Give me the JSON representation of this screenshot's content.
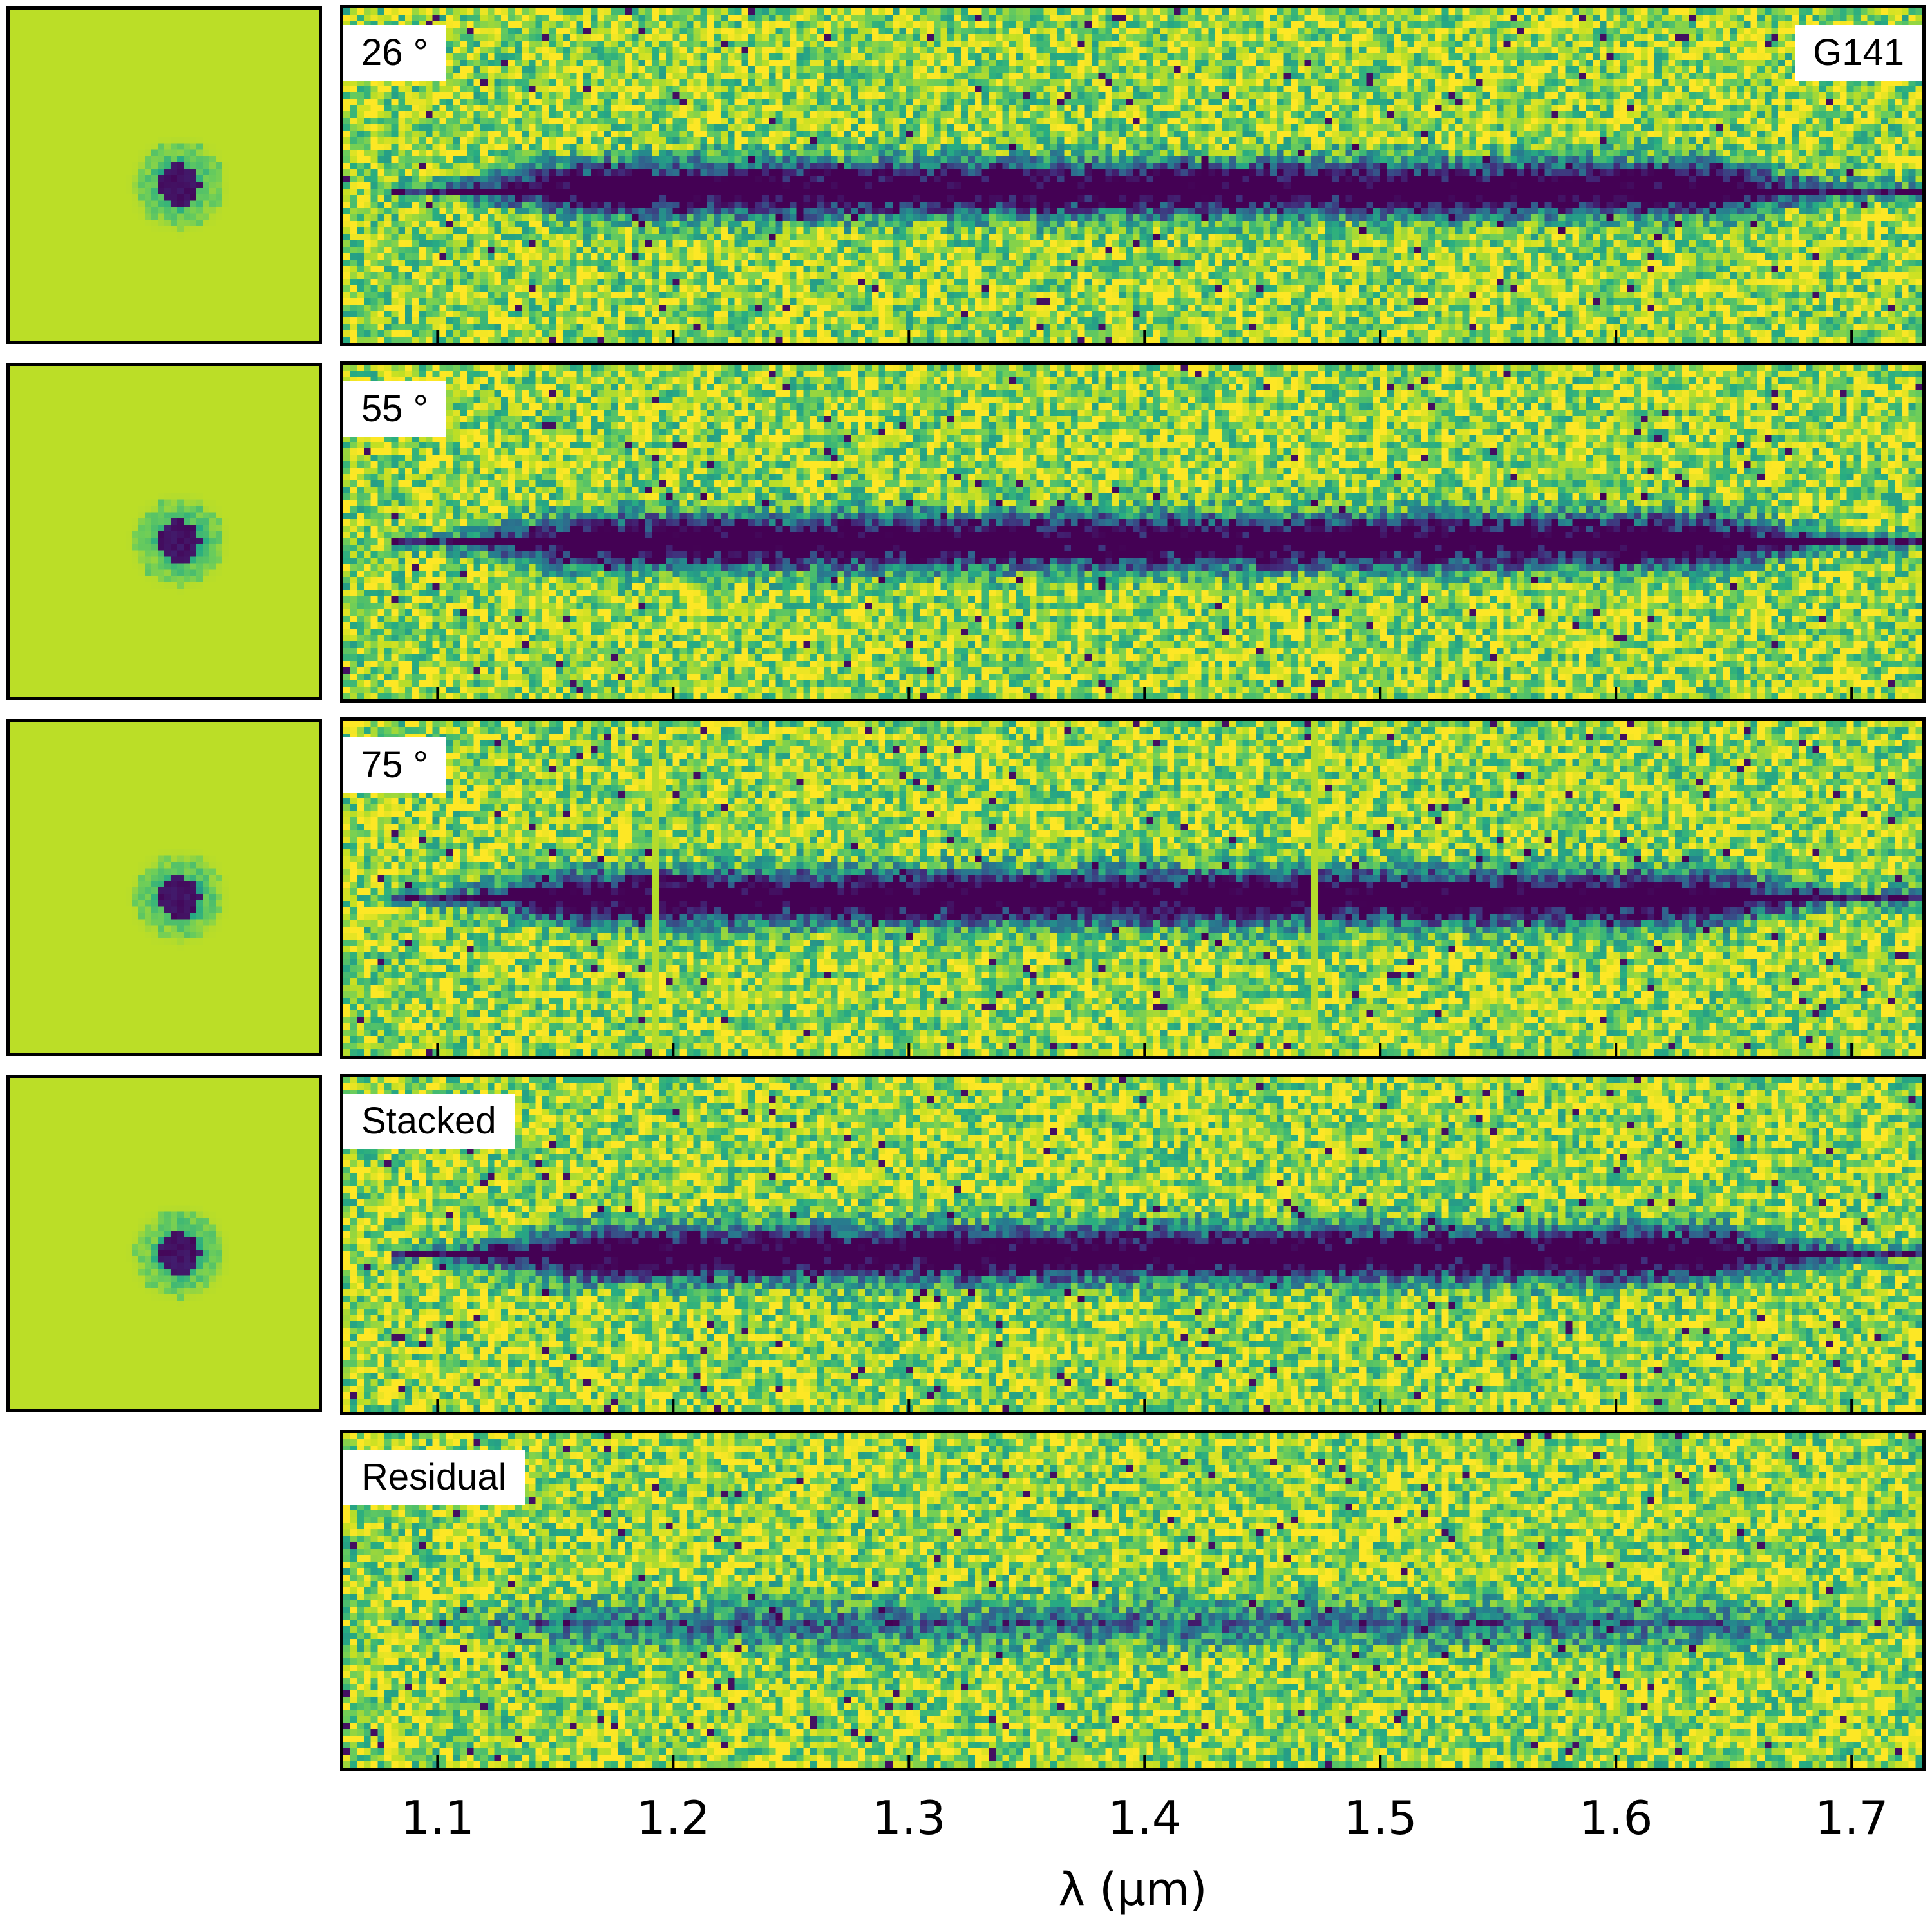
{
  "chart_data": {
    "type": "heatmap",
    "colormap": "viridis",
    "xlabel": "λ (μm)",
    "xlim": [
      1.06,
      1.73
    ],
    "xticks": [
      1.1,
      1.2,
      1.3,
      1.4,
      1.5,
      1.6,
      1.7
    ],
    "xtick_labels": [
      "1.1",
      "1.2",
      "1.3",
      "1.4",
      "1.5",
      "1.6",
      "1.7"
    ],
    "grism_label": "G141",
    "panels": [
      {
        "label": "26 °",
        "has_direct_image": true,
        "trace_y_fraction": 0.53,
        "trace_x_range": [
          1.08,
          1.73
        ],
        "trace_strength": 1.0
      },
      {
        "label": "55 °",
        "has_direct_image": true,
        "trace_y_fraction": 0.52,
        "trace_x_range": [
          1.08,
          1.73
        ],
        "trace_strength": 1.0
      },
      {
        "label": "75 °",
        "has_direct_image": true,
        "trace_y_fraction": 0.52,
        "trace_x_range": [
          1.08,
          1.73
        ],
        "trace_strength": 1.0,
        "detector_gaps": [
          1.19,
          1.47
        ]
      },
      {
        "label": "Stacked",
        "has_direct_image": true,
        "trace_y_fraction": 0.52,
        "trace_x_range": [
          1.08,
          1.73
        ],
        "trace_strength": 1.0
      },
      {
        "label": "Residual",
        "has_direct_image": false,
        "trace_y_fraction": 0.56,
        "trace_x_range": [
          1.08,
          1.73
        ],
        "trace_strength": 0.35
      }
    ]
  }
}
